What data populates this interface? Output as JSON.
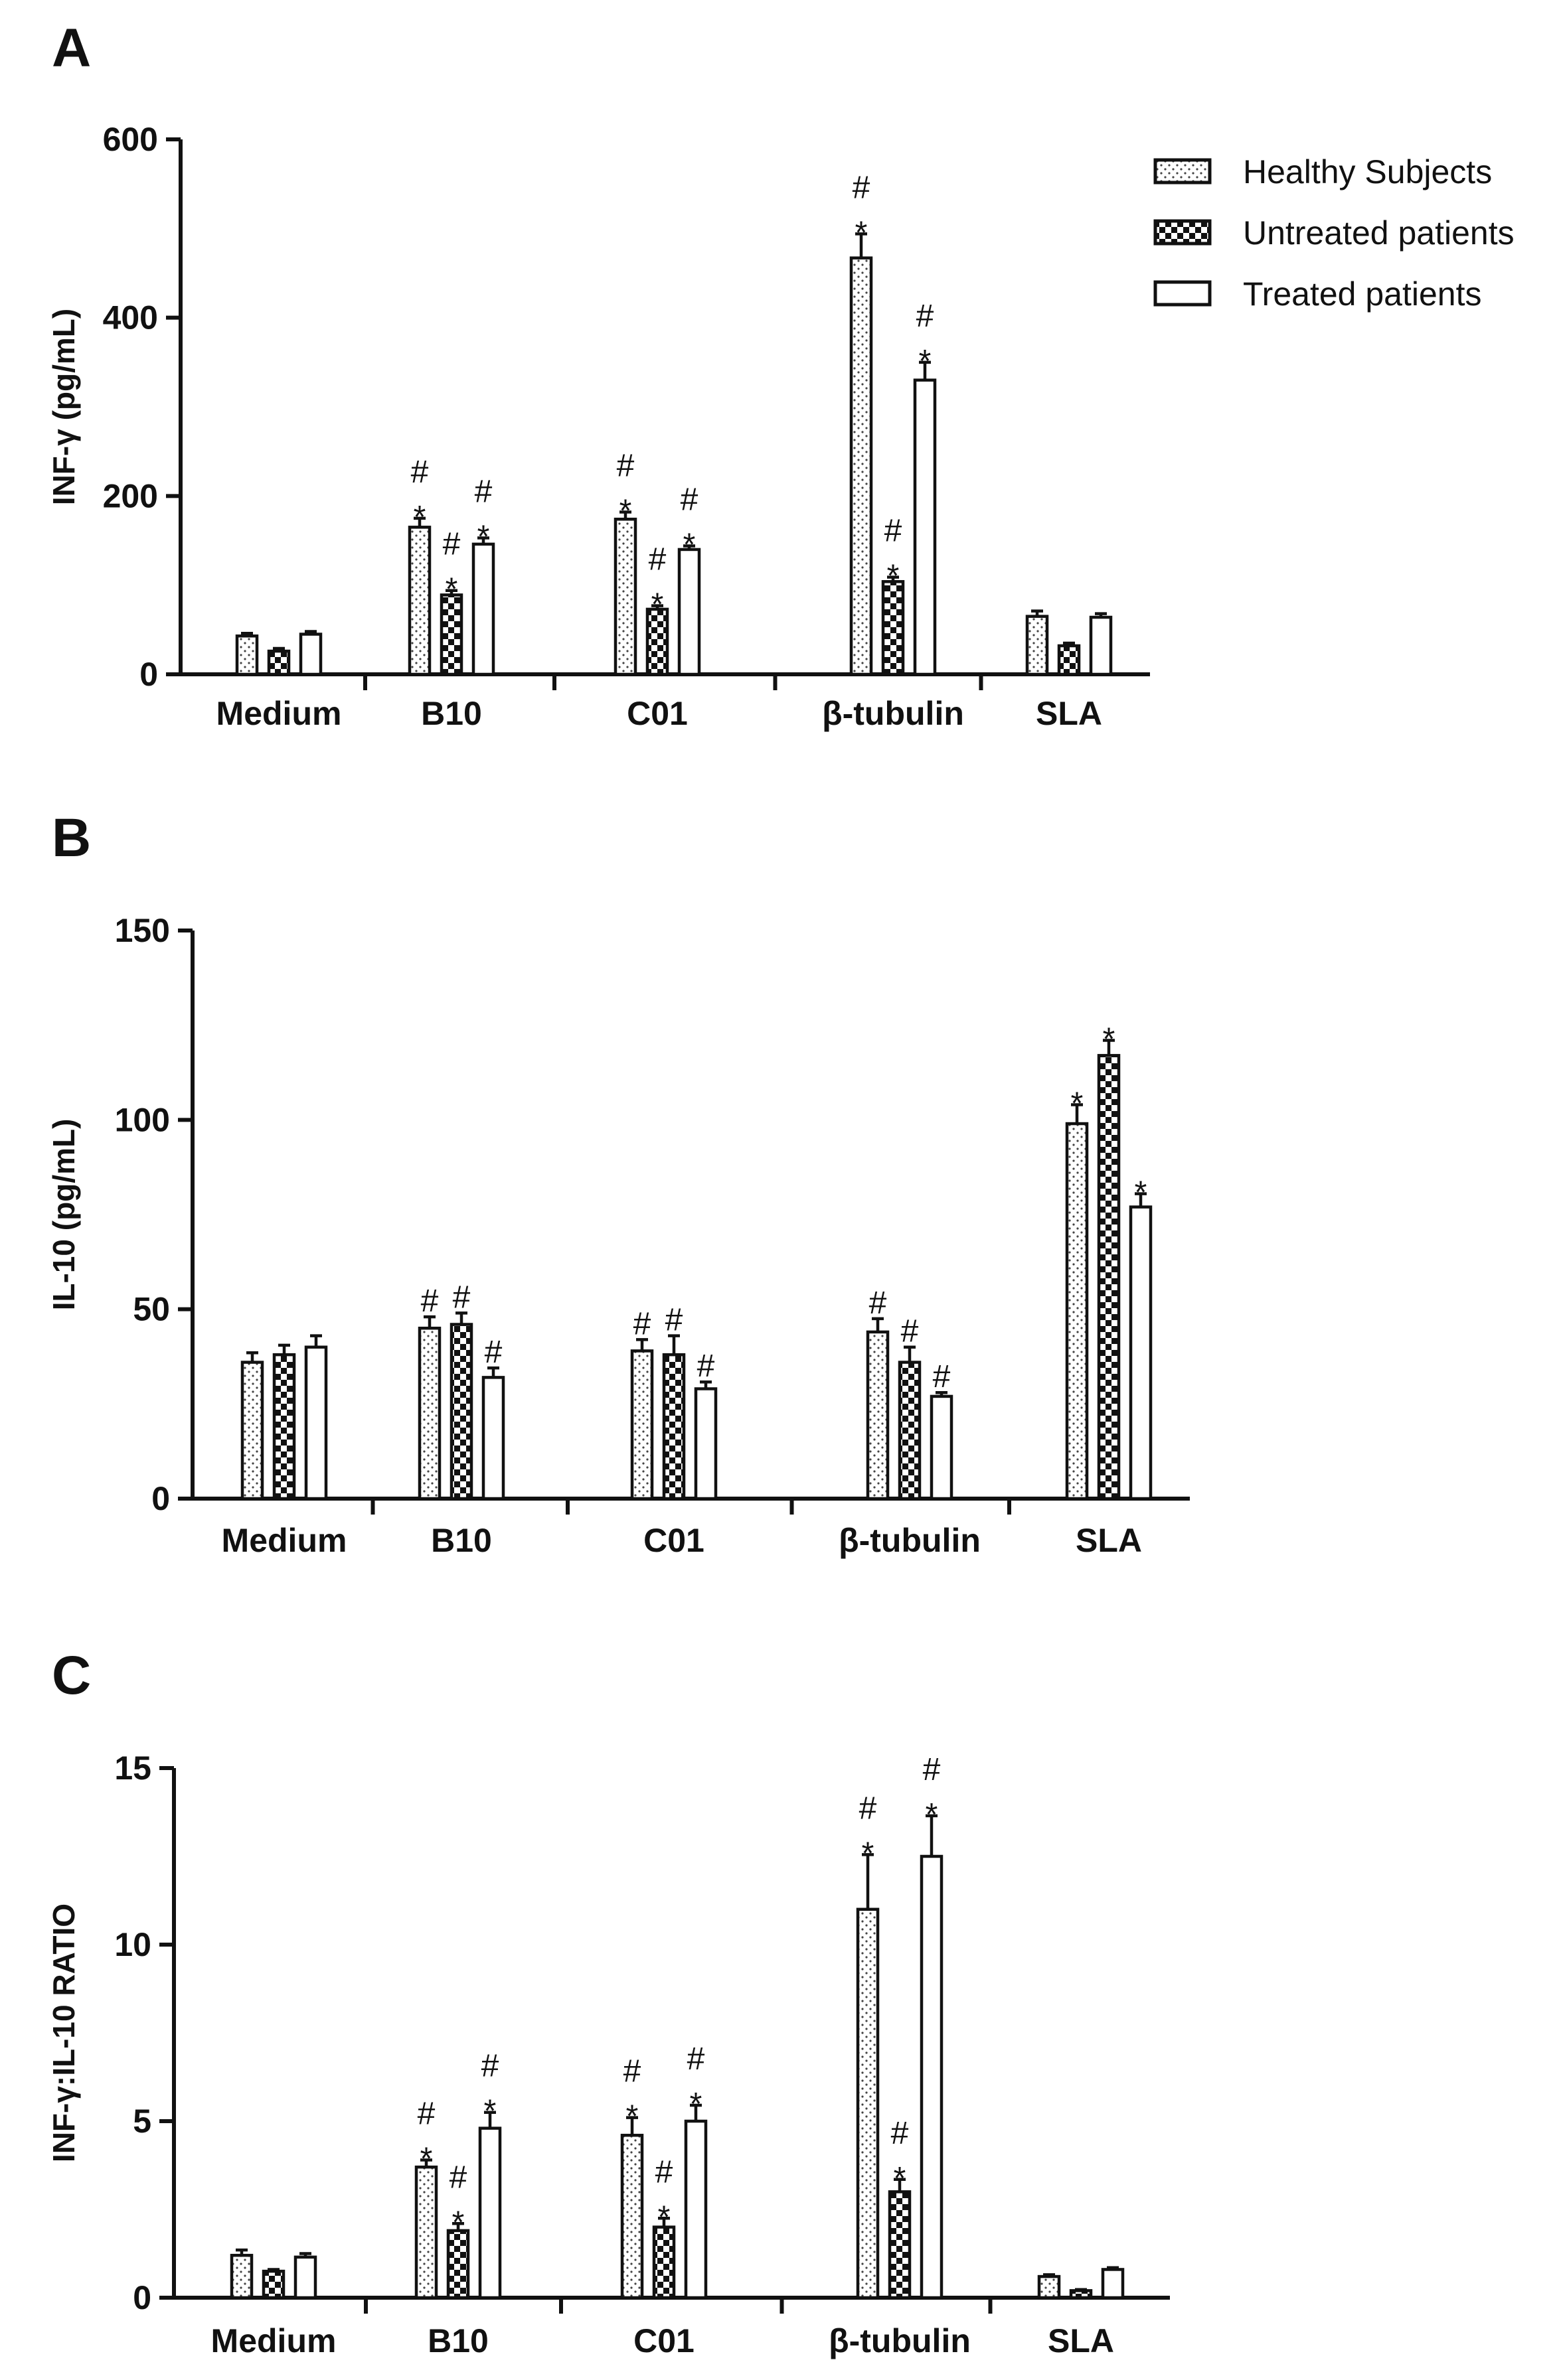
{
  "legend": [
    {
      "name": "Healthy Subjects",
      "pattern": "dots"
    },
    {
      "name": "Untreated patients",
      "pattern": "checker"
    },
    {
      "name": "Treated patients",
      "pattern": "empty"
    }
  ],
  "chart_data": [
    {
      "type": "bar",
      "panel": "A",
      "ylabel": "INF-γ (pg/mL)",
      "ylim": [
        0,
        600
      ],
      "yticks": [
        0,
        200,
        400,
        600
      ],
      "categories": [
        "Medium",
        "B10",
        "C01",
        "β-tubulin",
        "SLA"
      ],
      "series": [
        {
          "name": "Healthy Subjects",
          "values": [
            43,
            165,
            174,
            467,
            65
          ],
          "errors": [
            3,
            10,
            8,
            27,
            6
          ],
          "annotations": [
            "",
            "#*",
            "#*",
            "#*",
            ""
          ]
        },
        {
          "name": "Untreated patients",
          "values": [
            26,
            89,
            73,
            104,
            32
          ],
          "errors": [
            3,
            5,
            4,
            5,
            3
          ],
          "annotations": [
            "",
            "#*",
            "#*",
            "#*",
            ""
          ]
        },
        {
          "name": "Treated patients",
          "values": [
            45,
            146,
            140,
            330,
            64
          ],
          "errors": [
            3,
            7,
            4,
            20,
            4
          ],
          "annotations": [
            "",
            "#*",
            "#*",
            "#*",
            ""
          ]
        }
      ]
    },
    {
      "type": "bar",
      "panel": "B",
      "ylabel": "IL-10 (pg/mL)",
      "ylim": [
        0,
        150
      ],
      "yticks": [
        0,
        50,
        100,
        150
      ],
      "categories": [
        "Medium",
        "B10",
        "C01",
        "β-tubulin",
        "SLA"
      ],
      "series": [
        {
          "name": "Healthy Subjects",
          "values": [
            36,
            45,
            39,
            44,
            99
          ],
          "errors": [
            2.5,
            3,
            3,
            3.5,
            5
          ],
          "annotations": [
            "",
            "#",
            "#",
            "#",
            "*"
          ]
        },
        {
          "name": "Untreated patients",
          "values": [
            38,
            46,
            38,
            36,
            117
          ],
          "errors": [
            2.5,
            3,
            5,
            4,
            4
          ],
          "annotations": [
            "",
            "#",
            "#",
            "#",
            "*"
          ]
        },
        {
          "name": "Treated patients",
          "values": [
            40,
            32,
            29,
            27,
            77
          ],
          "errors": [
            3,
            2.5,
            1.8,
            1,
            3.5
          ],
          "annotations": [
            "",
            "#",
            "#",
            "#",
            "*"
          ]
        }
      ]
    },
    {
      "type": "bar",
      "panel": "C",
      "ylabel": "INF-γ:IL-10 RATIO",
      "ylim": [
        0,
        15
      ],
      "yticks": [
        0,
        5,
        10,
        15
      ],
      "categories": [
        "Medium",
        "B10",
        "C01",
        "β-tubulin",
        "SLA"
      ],
      "series": [
        {
          "name": "Healthy Subjects",
          "values": [
            1.2,
            3.7,
            4.6,
            11.0,
            0.6
          ],
          "errors": [
            0.15,
            0.2,
            0.5,
            1.55,
            0.05
          ],
          "annotations": [
            "",
            "#*",
            "#*",
            "#*",
            ""
          ]
        },
        {
          "name": "Untreated patients",
          "values": [
            0.75,
            1.9,
            2.0,
            3.0,
            0.2
          ],
          "errors": [
            0.05,
            0.2,
            0.25,
            0.35,
            0.03
          ],
          "annotations": [
            "",
            "#*",
            "#*",
            "#*",
            ""
          ]
        },
        {
          "name": "Treated patients",
          "values": [
            1.15,
            4.8,
            5.0,
            12.5,
            0.8
          ],
          "errors": [
            0.1,
            0.45,
            0.45,
            1.15,
            0.05
          ],
          "annotations": [
            "",
            "#*",
            "#*",
            "#*",
            ""
          ]
        }
      ]
    }
  ]
}
